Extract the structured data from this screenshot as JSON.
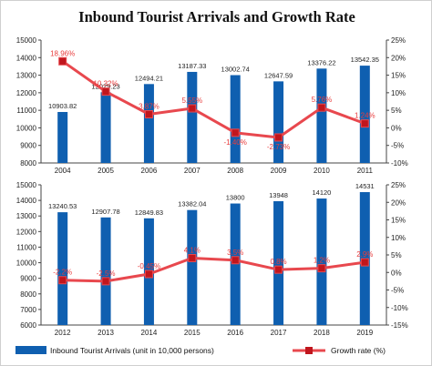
{
  "title": "Inbound Tourist Arrivals and Growth Rate",
  "colors": {
    "bar": "#0f5fb0",
    "line": "#e8484e",
    "marker": "#c0161d",
    "grid": "#d8d8d8",
    "growth_label": "#e83c3c"
  },
  "legend": {
    "bars_label": "Inbound Tourist Arrivals (unit in 10,000 persons)",
    "line_label": "Growth rate (%)",
    "placement": "bottom"
  },
  "chart_data": [
    {
      "type": "bar",
      "categories": [
        "2004",
        "2005",
        "2006",
        "2007",
        "2008",
        "2009",
        "2010",
        "2011"
      ],
      "series": [
        {
          "name": "Inbound Tourist Arrivals (unit in 10,000 persons)",
          "type": "bar",
          "axis": "left",
          "values": [
            10903.82,
            12029.23,
            12494.21,
            13187.33,
            13002.74,
            12647.59,
            13376.22,
            13542.35
          ],
          "labels": [
            "10903.82",
            "12029.23",
            "12494.21",
            "13187.33",
            "13002.74",
            "12647.59",
            "13376.22",
            "13542.35"
          ]
        },
        {
          "name": "Growth rate (%)",
          "type": "line",
          "axis": "right",
          "values": [
            18.96,
            10.32,
            3.87,
            5.55,
            -1.4,
            -2.73,
            5.76,
            1.24
          ],
          "labels": [
            "18.96%",
            "10.32%",
            "3.87%",
            "5.55%",
            "-1.40%",
            "-2.73%",
            "5.76%",
            "1.24%"
          ]
        }
      ],
      "left_ticks": [
        "8000",
        "9000",
        "10000",
        "11000",
        "12000",
        "13000",
        "14000",
        "15000"
      ],
      "right_ticks": [
        "-10%",
        "-5%",
        "0%",
        "5%",
        "10%",
        "15%",
        "20%",
        "25%"
      ],
      "ylim_left": [
        8000,
        15000
      ],
      "ylim_right": [
        -10,
        25
      ],
      "grid": false
    },
    {
      "type": "bar",
      "categories": [
        "2012",
        "2013",
        "2014",
        "2015",
        "2016",
        "2017",
        "2018",
        "2019"
      ],
      "series": [
        {
          "name": "Inbound Tourist Arrivals (unit in 10,000 persons)",
          "type": "bar",
          "axis": "left",
          "values": [
            13240.53,
            12907.78,
            12849.83,
            13382.04,
            13800,
            13948,
            14120,
            14531
          ],
          "labels": [
            "13240.53",
            "12907.78",
            "12849.83",
            "13382.04",
            "13800",
            "13948",
            "14120",
            "14531"
          ]
        },
        {
          "name": "Growth rate (%)",
          "type": "line",
          "axis": "right",
          "values": [
            -2.2,
            -2.5,
            -0.45,
            4.1,
            3.5,
            0.8,
            1.2,
            2.9
          ],
          "labels": [
            "-2.2%",
            "-2.5%",
            "-0.45%",
            "4.1%",
            "3.5%",
            "0.8%",
            "1.2%",
            "2.9%"
          ]
        }
      ],
      "left_ticks": [
        "6000",
        "7000",
        "8000",
        "9000",
        "10000",
        "11000",
        "12000",
        "13000",
        "14000",
        "15000"
      ],
      "right_ticks": [
        "-15%",
        "-10%",
        "-5%",
        "0%",
        "5%",
        "10%",
        "15%",
        "20%",
        "25%"
      ],
      "ylim_left": [
        6000,
        15000
      ],
      "ylim_right": [
        -15,
        25
      ],
      "grid": false
    }
  ]
}
